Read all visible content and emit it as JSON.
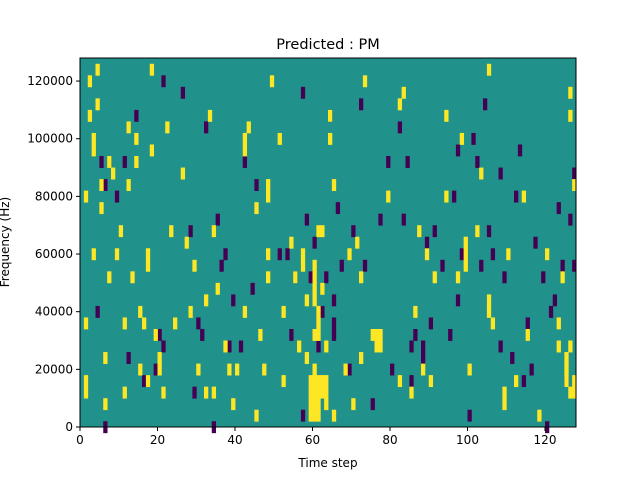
{
  "chart_data": {
    "type": "heatmap",
    "title": "Predicted : PM",
    "xlabel": "Time step",
    "ylabel": "Frequency (Hz)",
    "xlim": [
      0,
      128
    ],
    "ylim": [
      0,
      128000
    ],
    "x_ticks": [
      0,
      20,
      40,
      60,
      80,
      100,
      120
    ],
    "y_ticks": [
      0,
      20000,
      40000,
      60000,
      80000,
      100000,
      120000
    ],
    "x_tick_labels": [
      "0",
      "20",
      "40",
      "60",
      "80",
      "100",
      "120"
    ],
    "y_tick_labels": [
      "0",
      "20000",
      "40000",
      "60000",
      "80000",
      "100000",
      "120000"
    ],
    "grid": false,
    "colormap": {
      "-1": "#440154",
      "0": "#21918c",
      "1": "#fde725"
    },
    "background_value": 0,
    "cell_height": 4000,
    "cells": {
      "positive": [
        [
          2,
          38000
        ],
        [
          2,
          18000
        ],
        [
          2,
          14000
        ],
        [
          2,
          82000
        ],
        [
          3,
          122000
        ],
        [
          3,
          110000
        ],
        [
          4,
          98000
        ],
        [
          4,
          102000
        ],
        [
          4,
          62000
        ],
        [
          5,
          126000
        ],
        [
          5,
          114000
        ],
        [
          6,
          86000
        ],
        [
          6,
          78000
        ],
        [
          7,
          26000
        ],
        [
          7,
          10000
        ],
        [
          8,
          94000
        ],
        [
          8,
          54000
        ],
        [
          9,
          90000
        ],
        [
          10,
          62000
        ],
        [
          11,
          70000
        ],
        [
          12,
          38000
        ],
        [
          12,
          14000
        ],
        [
          13,
          106000
        ],
        [
          13,
          86000
        ],
        [
          14,
          54000
        ],
        [
          15,
          102000
        ],
        [
          15,
          94000
        ],
        [
          16,
          42000
        ],
        [
          16,
          22000
        ],
        [
          17,
          38000
        ],
        [
          18,
          58000
        ],
        [
          18,
          62000
        ],
        [
          18,
          18000
        ],
        [
          19,
          98000
        ],
        [
          19,
          126000
        ],
        [
          20,
          34000
        ],
        [
          21,
          26000
        ],
        [
          21,
          22000
        ],
        [
          22,
          14000
        ],
        [
          23,
          106000
        ],
        [
          24,
          70000
        ],
        [
          25,
          38000
        ],
        [
          27,
          90000
        ],
        [
          28,
          66000
        ],
        [
          29,
          42000
        ],
        [
          30,
          58000
        ],
        [
          31,
          22000
        ],
        [
          33,
          46000
        ],
        [
          33,
          14000
        ],
        [
          34,
          110000
        ],
        [
          35,
          70000
        ],
        [
          35,
          14000
        ],
        [
          36,
          50000
        ],
        [
          38,
          30000
        ],
        [
          39,
          22000
        ],
        [
          40,
          10000
        ],
        [
          41,
          22000
        ],
        [
          43,
          102000
        ],
        [
          43,
          98000
        ],
        [
          44,
          106000
        ],
        [
          46,
          78000
        ],
        [
          46,
          6000
        ],
        [
          47,
          34000
        ],
        [
          48,
          22000
        ],
        [
          49,
          86000
        ],
        [
          49,
          82000
        ],
        [
          49,
          62000
        ],
        [
          49,
          54000
        ],
        [
          50,
          122000
        ],
        [
          52,
          102000
        ],
        [
          53,
          42000
        ],
        [
          53,
          18000
        ],
        [
          55,
          66000
        ],
        [
          56,
          54000
        ],
        [
          57,
          30000
        ],
        [
          58,
          62000
        ],
        [
          59,
          26000
        ],
        [
          59,
          46000
        ],
        [
          60,
          10000
        ],
        [
          60,
          6000
        ],
        [
          60,
          14000
        ],
        [
          60,
          18000
        ],
        [
          61,
          46000
        ],
        [
          61,
          50000
        ],
        [
          61,
          54000
        ],
        [
          61,
          58000
        ],
        [
          61,
          34000
        ],
        [
          61,
          22000
        ],
        [
          61,
          18000
        ],
        [
          61,
          14000
        ],
        [
          61,
          10000
        ],
        [
          61,
          6000
        ],
        [
          62,
          70000
        ],
        [
          62,
          42000
        ],
        [
          62,
          38000
        ],
        [
          62,
          34000
        ],
        [
          62,
          18000
        ],
        [
          62,
          14000
        ],
        [
          62,
          10000
        ],
        [
          62,
          6000
        ],
        [
          63,
          70000
        ],
        [
          63,
          50000
        ],
        [
          63,
          18000
        ],
        [
          63,
          14000
        ],
        [
          64,
          30000
        ],
        [
          64,
          18000
        ],
        [
          64,
          14000
        ],
        [
          64,
          10000
        ],
        [
          65,
          110000
        ],
        [
          65,
          102000
        ],
        [
          66,
          86000
        ],
        [
          66,
          6000
        ],
        [
          69,
          22000
        ],
        [
          70,
          62000
        ],
        [
          71,
          10000
        ],
        [
          72,
          66000
        ],
        [
          73,
          54000
        ],
        [
          73,
          26000
        ],
        [
          74,
          122000
        ],
        [
          76,
          34000
        ],
        [
          77,
          34000
        ],
        [
          77,
          30000
        ],
        [
          78,
          34000
        ],
        [
          78,
          30000
        ],
        [
          80,
          82000
        ],
        [
          83,
          18000
        ],
        [
          83,
          114000
        ],
        [
          84,
          118000
        ],
        [
          86,
          14000
        ],
        [
          87,
          42000
        ],
        [
          88,
          70000
        ],
        [
          89,
          22000
        ],
        [
          90,
          62000
        ],
        [
          91,
          18000
        ],
        [
          92,
          54000
        ],
        [
          95,
          110000
        ],
        [
          95,
          82000
        ],
        [
          98,
          54000
        ],
        [
          99,
          102000
        ],
        [
          100,
          58000
        ],
        [
          100,
          62000
        ],
        [
          100,
          66000
        ],
        [
          101,
          22000
        ],
        [
          103,
          70000
        ],
        [
          104,
          90000
        ],
        [
          106,
          126000
        ],
        [
          106,
          46000
        ],
        [
          106,
          42000
        ],
        [
          107,
          38000
        ],
        [
          110,
          14000
        ],
        [
          110,
          10000
        ],
        [
          111,
          62000
        ],
        [
          113,
          18000
        ],
        [
          115,
          82000
        ],
        [
          116,
          34000
        ],
        [
          119,
          6000
        ],
        [
          121,
          62000
        ],
        [
          124,
          38000
        ],
        [
          124,
          30000
        ],
        [
          125,
          54000
        ],
        [
          126,
          26000
        ],
        [
          126,
          22000
        ],
        [
          126,
          18000
        ],
        [
          127,
          30000
        ],
        [
          127,
          14000
        ],
        [
          127,
          118000
        ],
        [
          127,
          110000
        ],
        [
          128,
          14000
        ],
        [
          128,
          18000
        ],
        [
          128,
          86000
        ],
        [
          43,
          42000
        ],
        [
          58,
          58000
        ]
      ],
      "negative": [
        [
          5,
          42000
        ],
        [
          6,
          94000
        ],
        [
          7,
          86000
        ],
        [
          7,
          2000
        ],
        [
          8,
          94000
        ],
        [
          10,
          82000
        ],
        [
          12,
          94000
        ],
        [
          13,
          26000
        ],
        [
          15,
          110000
        ],
        [
          17,
          18000
        ],
        [
          20,
          22000
        ],
        [
          21,
          34000
        ],
        [
          22,
          30000
        ],
        [
          22,
          122000
        ],
        [
          27,
          118000
        ],
        [
          29,
          70000
        ],
        [
          30,
          14000
        ],
        [
          31,
          38000
        ],
        [
          32,
          34000
        ],
        [
          33,
          106000
        ],
        [
          35,
          2000
        ],
        [
          36,
          74000
        ],
        [
          37,
          58000
        ],
        [
          38,
          62000
        ],
        [
          39,
          30000
        ],
        [
          40,
          46000
        ],
        [
          42,
          30000
        ],
        [
          43,
          94000
        ],
        [
          45,
          50000
        ],
        [
          46,
          86000
        ],
        [
          52,
          62000
        ],
        [
          54,
          62000
        ],
        [
          55,
          34000
        ],
        [
          56,
          54000
        ],
        [
          58,
          6000
        ],
        [
          58,
          118000
        ],
        [
          59,
          74000
        ],
        [
          60,
          54000
        ],
        [
          61,
          66000
        ],
        [
          62,
          30000
        ],
        [
          63,
          42000
        ],
        [
          64,
          54000
        ],
        [
          65,
          110000
        ],
        [
          66,
          46000
        ],
        [
          66,
          34000
        ],
        [
          66,
          38000
        ],
        [
          67,
          78000
        ],
        [
          68,
          58000
        ],
        [
          70,
          22000
        ],
        [
          71,
          70000
        ],
        [
          73,
          114000
        ],
        [
          74,
          58000
        ],
        [
          76,
          10000
        ],
        [
          78,
          74000
        ],
        [
          80,
          94000
        ],
        [
          81,
          22000
        ],
        [
          83,
          106000
        ],
        [
          84,
          74000
        ],
        [
          85,
          94000
        ],
        [
          86,
          30000
        ],
        [
          87,
          34000
        ],
        [
          89,
          26000
        ],
        [
          89,
          30000
        ],
        [
          90,
          66000
        ],
        [
          91,
          38000
        ],
        [
          92,
          70000
        ],
        [
          94,
          58000
        ],
        [
          96,
          34000
        ],
        [
          97,
          82000
        ],
        [
          98,
          98000
        ],
        [
          99,
          62000
        ],
        [
          101,
          6000
        ],
        [
          102,
          102000
        ],
        [
          103,
          94000
        ],
        [
          104,
          58000
        ],
        [
          105,
          114000
        ],
        [
          106,
          70000
        ],
        [
          107,
          62000
        ],
        [
          109,
          90000
        ],
        [
          110,
          54000
        ],
        [
          112,
          26000
        ],
        [
          113,
          82000
        ],
        [
          114,
          98000
        ],
        [
          115,
          18000
        ],
        [
          116,
          38000
        ],
        [
          117,
          22000
        ],
        [
          118,
          66000
        ],
        [
          120,
          54000
        ],
        [
          121,
          2000
        ],
        [
          122,
          42000
        ],
        [
          123,
          46000
        ],
        [
          124,
          78000
        ],
        [
          125,
          58000
        ],
        [
          126,
          18000
        ],
        [
          127,
          74000
        ],
        [
          128,
          90000
        ],
        [
          128,
          58000
        ],
        [
          98,
          46000
        ],
        [
          109,
          30000
        ],
        [
          86,
          18000
        ]
      ]
    }
  }
}
